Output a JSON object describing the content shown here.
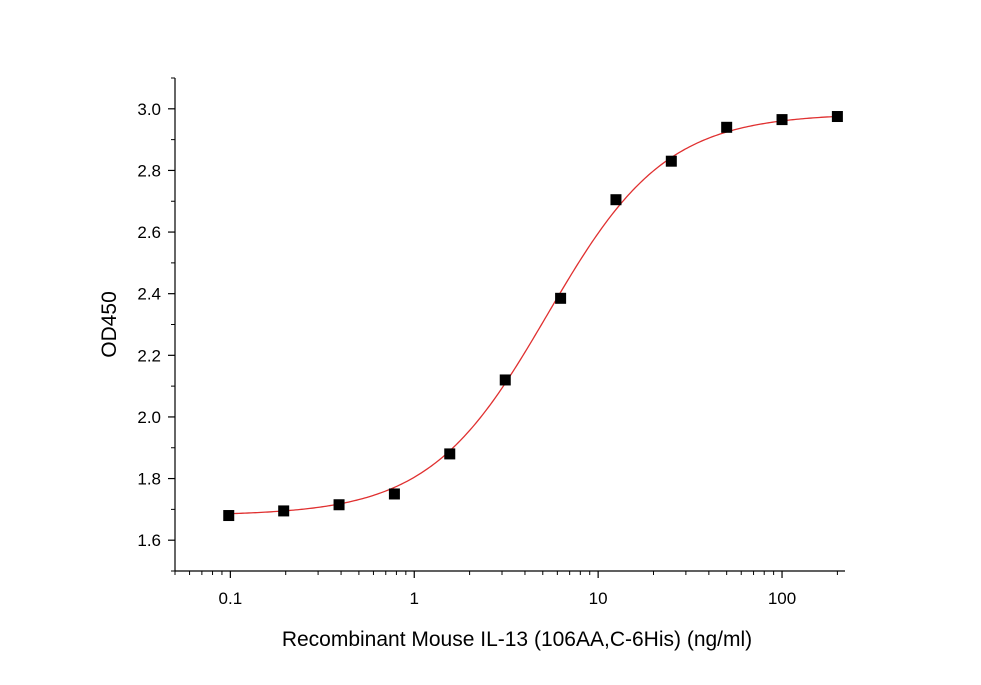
{
  "chart_data": {
    "type": "scatter",
    "title": "",
    "xlabel": "Recombinant Mouse IL-13 (106AA,C-6His) (ng/ml)",
    "ylabel": "OD450",
    "x_scale": "log",
    "xlim": [
      0.05,
      220
    ],
    "ylim": [
      1.5,
      3.1
    ],
    "x_ticks": [
      0.1,
      1,
      10,
      100
    ],
    "x_tick_labels": [
      "0.1",
      "1",
      "10",
      "100"
    ],
    "y_ticks": [
      1.6,
      1.8,
      2.0,
      2.2,
      2.4,
      2.6,
      2.8,
      3.0
    ],
    "y_tick_labels": [
      "1.6",
      "1.8",
      "2.0",
      "2.2",
      "2.4",
      "2.6",
      "2.8",
      "3.0"
    ],
    "grid": false,
    "series": [
      {
        "marker": "square",
        "color": "#000000",
        "points": [
          {
            "x": 0.098,
            "y": 1.68
          },
          {
            "x": 0.195,
            "y": 1.695
          },
          {
            "x": 0.39,
            "y": 1.715
          },
          {
            "x": 0.78,
            "y": 1.75
          },
          {
            "x": 1.56,
            "y": 1.88
          },
          {
            "x": 3.125,
            "y": 2.12
          },
          {
            "x": 6.25,
            "y": 2.385
          },
          {
            "x": 12.5,
            "y": 2.705
          },
          {
            "x": 25,
            "y": 2.83
          },
          {
            "x": 50,
            "y": 2.94
          },
          {
            "x": 100,
            "y": 2.965
          },
          {
            "x": 200,
            "y": 2.975
          }
        ]
      }
    ],
    "fit_curve": {
      "type": "4PL",
      "color": "#e03030",
      "bottom": 1.68,
      "top": 2.985,
      "ec50": 5.3,
      "hill": 1.35,
      "x_range": [
        0.098,
        200
      ]
    }
  }
}
